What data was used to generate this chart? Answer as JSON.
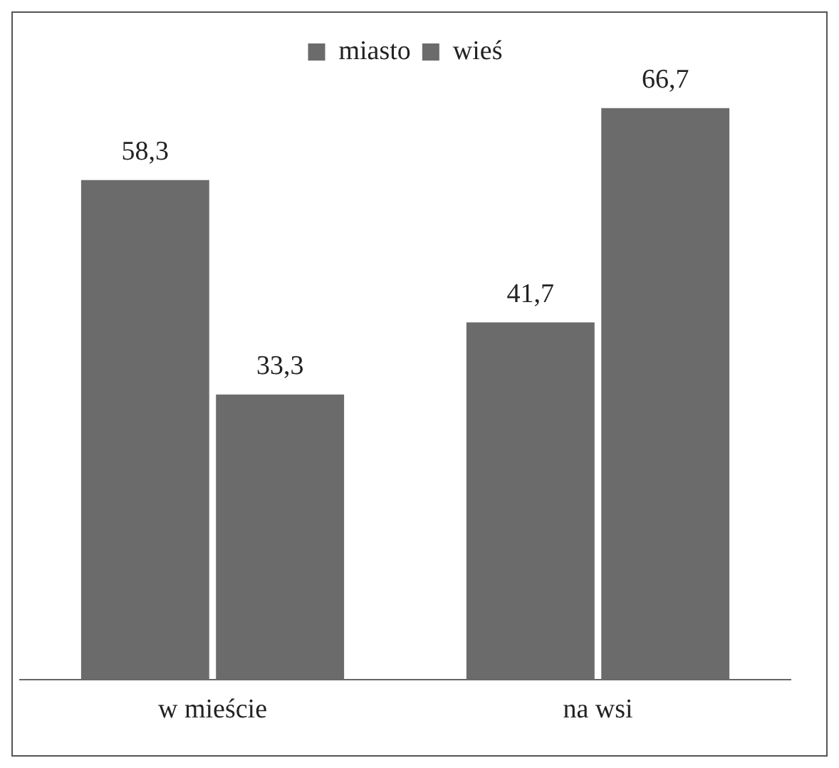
{
  "chart_data": {
    "type": "bar",
    "categories": [
      "w mieście",
      "na wsi"
    ],
    "series": [
      {
        "name": "miasto",
        "color": "#6b6b6b",
        "values": [
          58.3,
          41.7
        ],
        "value_labels": [
          "58,3",
          "41,7"
        ]
      },
      {
        "name": "wieś",
        "color": "#6b6b6b",
        "values": [
          33.3,
          66.7
        ],
        "value_labels": [
          "33,3",
          "66,7"
        ]
      }
    ],
    "legend": "top",
    "grid": false
  }
}
